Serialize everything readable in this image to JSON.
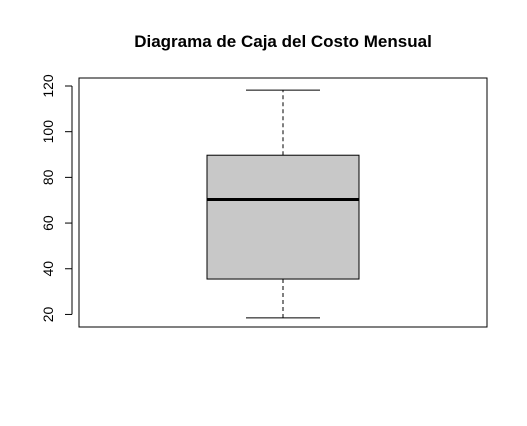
{
  "chart_data": {
    "type": "boxplot",
    "title": "Diagrama de Caja del Costo Mensual",
    "xlabel": "",
    "ylabel": "",
    "ylim": [
      14.5,
      123.5
    ],
    "y_ticks": [
      20,
      40,
      60,
      80,
      100,
      120
    ],
    "y_tick_labels": [
      "20",
      "40",
      "60",
      "80",
      "100",
      "120"
    ],
    "box": {
      "min": 18.5,
      "q1": 35.5,
      "median": 70.3,
      "q3": 89.7,
      "max": 118.2
    },
    "grid": false,
    "colors": {
      "box_fill": "#c8c8c8",
      "stroke": "#000000"
    }
  }
}
